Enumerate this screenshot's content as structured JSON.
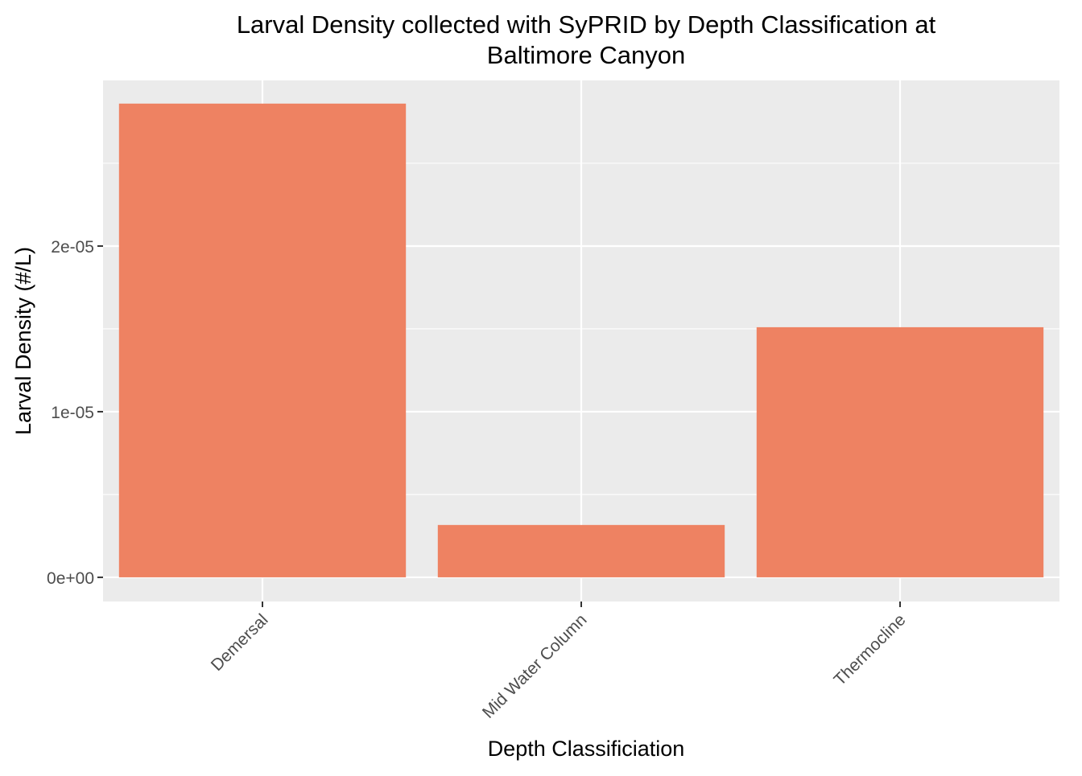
{
  "chart_data": {
    "type": "bar",
    "title_lines": [
      "Larval Density collected with SyPRID by Depth Classification at",
      "Baltimore Canyon"
    ],
    "xlabel": "Depth Classificiation",
    "ylabel": "Larval Density (#/L)",
    "categories": [
      "Demersal",
      "Mid Water Column",
      "Thermocline"
    ],
    "values": [
      2.86e-05,
      3.16e-06,
      1.51e-05
    ],
    "ylim": [
      -1.46e-06,
      3e-05
    ],
    "yticks": [
      0,
      1e-05,
      2e-05
    ],
    "ytick_labels": [
      "0e+00",
      "1e-05",
      "2e-05"
    ],
    "yminor": [
      5e-06,
      1.5e-05,
      2.5e-05
    ],
    "grid": true,
    "colors": {
      "bar": "#EE8262",
      "panel": "#EBEBEB",
      "grid": "#FFFFFF",
      "tick_text": "#4D4D4D"
    }
  }
}
